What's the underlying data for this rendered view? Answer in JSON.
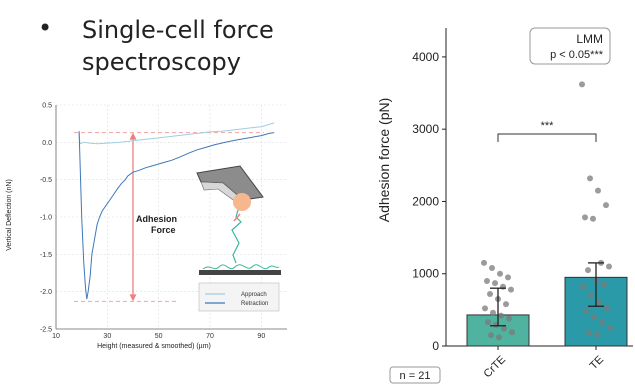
{
  "slide": {
    "bullet": "•",
    "title": "Single-cell force spectroscopy"
  },
  "chart_data": [
    {
      "type": "line",
      "ylabel": "Vertical Deflection (nN)",
      "xlabel": "Height (measured & smoothed) (µm)",
      "xlim": [
        10,
        100
      ],
      "ylim": [
        -2.5,
        0.5
      ],
      "xticks": [
        "10",
        "30",
        "50",
        "70",
        "90"
      ],
      "yticks": [
        "0.5",
        "0.0",
        "-0.5",
        "-1.0",
        "-1.5",
        "-2.0",
        "-2.5"
      ],
      "grid": true,
      "legend_position": "bottom-right",
      "annotation": [
        "Adhesion",
        "Force"
      ],
      "colors": {
        "approach": "#9ecfe4",
        "retraction": "#3f78b8",
        "arrow": "#f08080",
        "dashed": "#f4a3a3",
        "cell": "#f7b78e",
        "tether": "#3cb89a"
      },
      "series": [
        {
          "name": "Approach",
          "x": [
            19,
            19.3,
            21,
            23,
            26,
            30,
            35,
            40,
            45,
            50,
            55,
            60,
            65,
            70,
            75,
            80,
            85,
            90,
            95
          ],
          "y": [
            0.13,
            -0.02,
            0.0,
            -0.01,
            -0.02,
            -0.01,
            0.0,
            0.02,
            0.04,
            0.06,
            0.08,
            0.1,
            0.12,
            0.14,
            0.15,
            0.17,
            0.19,
            0.21,
            0.26
          ]
        },
        {
          "name": "Retraction",
          "x": [
            19,
            19.3,
            20,
            20.8,
            21.5,
            22,
            22.5,
            23.3,
            24,
            25,
            26,
            27,
            28,
            30,
            32,
            34,
            35.5,
            37,
            38,
            40,
            42,
            45,
            48,
            52,
            55,
            58,
            62,
            65,
            68,
            72,
            76,
            80,
            85,
            90,
            93,
            95
          ],
          "y": [
            0.15,
            -0.2,
            -1.0,
            -1.6,
            -1.95,
            -2.1,
            -2.0,
            -1.8,
            -1.5,
            -1.3,
            -1.1,
            -1.0,
            -0.92,
            -0.82,
            -0.72,
            -0.62,
            -0.55,
            -0.5,
            -0.45,
            -0.4,
            -0.38,
            -0.34,
            -0.31,
            -0.27,
            -0.24,
            -0.2,
            -0.14,
            -0.1,
            -0.07,
            -0.03,
            0.0,
            0.03,
            0.06,
            0.09,
            0.12,
            0.13
          ]
        }
      ]
    },
    {
      "type": "bar",
      "ylabel": "Adhesion force (pN)",
      "ylim": [
        0,
        4400
      ],
      "yticks": [
        "0",
        "1000",
        "2000",
        "3000",
        "4000"
      ],
      "categories": [
        "CrTE",
        "TE"
      ],
      "values": [
        430,
        950
      ],
      "colors": [
        "#4fb3a0",
        "#2a9aa8"
      ],
      "error_low": [
        280,
        550
      ],
      "error_high": [
        800,
        1150
      ],
      "points": [
        [
          1150,
          1080,
          1000,
          950,
          900,
          870,
          820,
          780,
          720,
          650,
          580,
          520,
          460,
          420,
          380,
          330,
          290,
          240,
          190,
          150,
          120
        ],
        [
          3620,
          2320,
          2150,
          1950,
          1780,
          1760,
          1150,
          1100,
          1050,
          900,
          850,
          820,
          700,
          600,
          520,
          480,
          400,
          320,
          250,
          180,
          160
        ]
      ],
      "significance": "***",
      "stat_box": [
        "LMM",
        "p < 0.05***"
      ],
      "n_label": "n = 21"
    }
  ],
  "legend": [
    "Approach",
    "Retraction"
  ]
}
